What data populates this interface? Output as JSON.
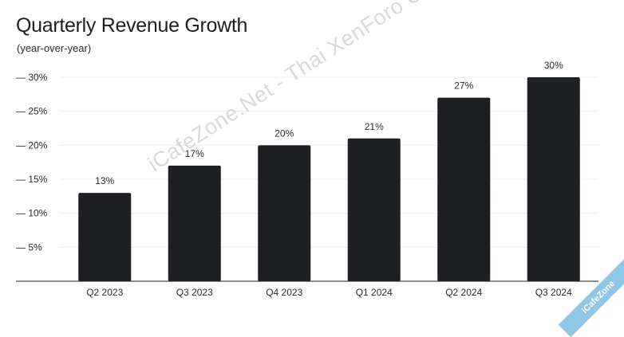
{
  "chart_data": {
    "type": "bar",
    "title": "Quarterly Revenue Growth",
    "subtitle": "(year-over-year)",
    "xlabel": "",
    "ylabel": "",
    "categories": [
      "Q2 2023",
      "Q3 2023",
      "Q4 2023",
      "Q1 2024",
      "Q2 2024",
      "Q3 2024"
    ],
    "values": [
      13,
      17,
      20,
      21,
      27,
      30
    ],
    "data_labels": [
      "13%",
      "17%",
      "20%",
      "21%",
      "27%",
      "30%"
    ],
    "ylim": [
      0,
      30
    ],
    "yticks": [
      5,
      10,
      15,
      20,
      25,
      30
    ],
    "ytick_labels": [
      "— 5%",
      "— 10%",
      "— 15%",
      "— 20%",
      "— 25%",
      "— 30%"
    ],
    "grid": true,
    "legend": "none",
    "bar_color": "#1e1f22"
  },
  "watermark": {
    "text": "iCafeZone.Net - Thai XenForo Community"
  },
  "badge": {
    "text": "iCafeZone"
  }
}
